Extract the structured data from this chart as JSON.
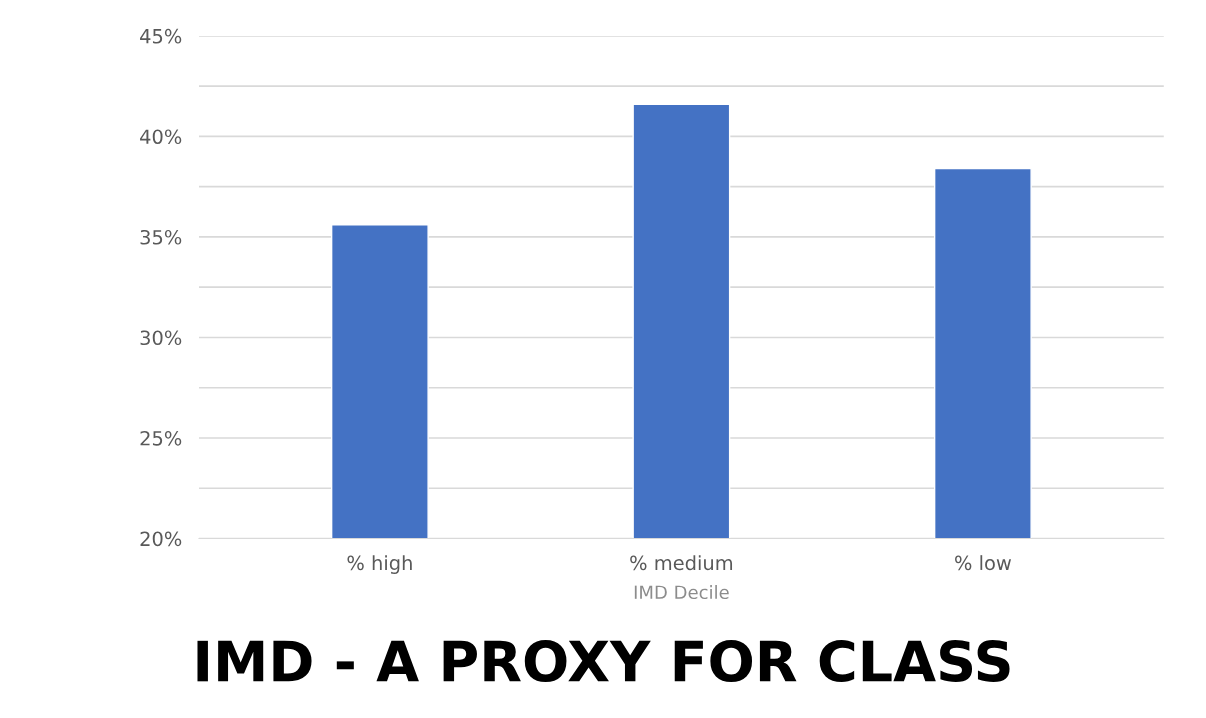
{
  "chart_data": {
    "type": "bar",
    "categories": [
      "% high",
      "% medium",
      "% low"
    ],
    "values": [
      35.6,
      41.6,
      38.4
    ],
    "color": "#4472c4",
    "xlabel": "IMD Decile",
    "ylim": [
      20,
      45
    ],
    "yticks": [
      {
        "value": 20,
        "label": "20%"
      },
      {
        "value": 22.5,
        "label": null
      },
      {
        "value": 25,
        "label": "25%"
      },
      {
        "value": 27.5,
        "label": null
      },
      {
        "value": 30,
        "label": "30%"
      },
      {
        "value": 32.5,
        "label": null
      },
      {
        "value": 35,
        "label": "35%"
      },
      {
        "value": 37.5,
        "label": null
      },
      {
        "value": 40,
        "label": "40%"
      },
      {
        "value": 42.5,
        "label": null
      },
      {
        "value": 45,
        "label": "45%"
      }
    ],
    "grid": "y",
    "legend": false,
    "annotations": [
      "IMD - A PROXY FOR CLASS"
    ]
  }
}
